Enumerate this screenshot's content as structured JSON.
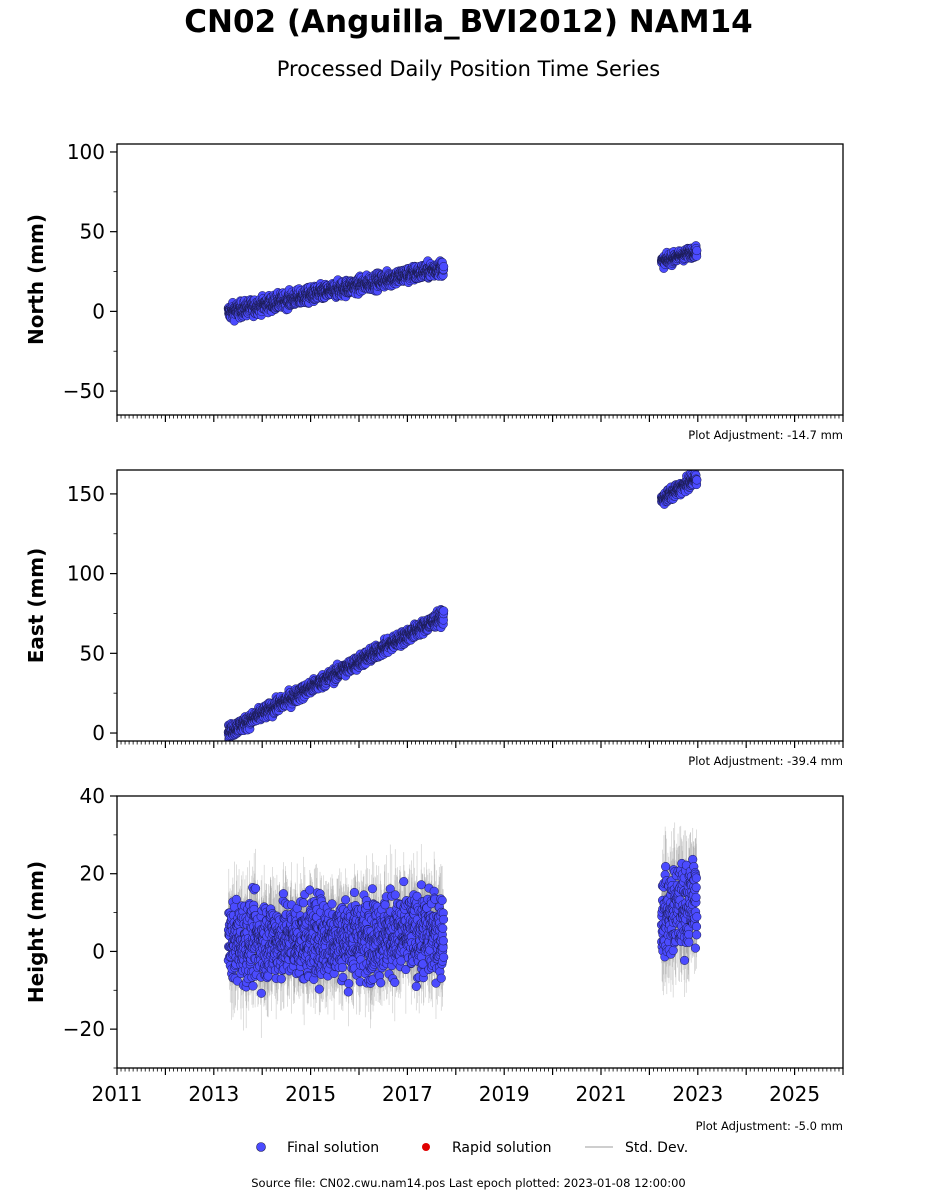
{
  "title": "CN02 (Anguilla_BVI2012) NAM14",
  "subtitle": "Processed Daily Position Time Series",
  "source_text": "Source file: CN02.cwu.nam14.pos  Last epoch plotted: 2023-01-08 12:00:00",
  "colors": {
    "final": "#4b4bff",
    "final_edge": "#1a1a4d",
    "rapid": "#e00000",
    "stddev": "#bdbdbd"
  },
  "chart_data": [
    {
      "type": "scatter",
      "ylabel": "North (mm)",
      "adjustment": "Plot Adjustment: -14.7 mm",
      "xlim": [
        2011,
        2026
      ],
      "ylim": [
        -65,
        105
      ],
      "yticks": [
        -50,
        0,
        50,
        100
      ],
      "ytick_labels": [
        "−50",
        "0",
        "50",
        "100"
      ],
      "show_xtick_labels": false,
      "series": [
        {
          "name": "Final solution",
          "segments": [
            {
              "x_start": 2013.3,
              "x_end": 2017.75,
              "y_start": -0.5,
              "y_end": 27.5,
              "scatter": 3.4
            },
            {
              "x_start": 2022.25,
              "x_end": 2022.98,
              "y_start": 31,
              "y_end": 38,
              "scatter": 2.4
            }
          ]
        }
      ]
    },
    {
      "type": "scatter",
      "ylabel": "East (mm)",
      "adjustment": "Plot Adjustment: -39.4 mm",
      "xlim": [
        2011,
        2026
      ],
      "ylim": [
        -5,
        165
      ],
      "yticks": [
        0,
        50,
        100,
        150
      ],
      "ytick_labels": [
        "0",
        "50",
        "100",
        "150"
      ],
      "show_xtick_labels": false,
      "series": [
        {
          "name": "Final solution",
          "segments": [
            {
              "x_start": 2013.3,
              "x_end": 2017.75,
              "y_start": 0.5,
              "y_end": 73.5,
              "scatter": 3.0
            },
            {
              "x_start": 2022.25,
              "x_end": 2022.98,
              "y_start": 146,
              "y_end": 160,
              "scatter": 2.6
            }
          ]
        }
      ]
    },
    {
      "type": "scatter",
      "ylabel": "Height (mm)",
      "adjustment": "Plot Adjustment: -5.0 mm",
      "xlim": [
        2011,
        2026
      ],
      "ylim": [
        -30,
        40
      ],
      "yticks": [
        -20,
        0,
        20,
        40
      ],
      "ytick_labels": [
        "−20",
        "0",
        "20",
        "40"
      ],
      "show_xtick_labels": true,
      "xticks": [
        2011,
        2013,
        2015,
        2017,
        2019,
        2021,
        2023,
        2025
      ],
      "xtick_labels": [
        "2011",
        "2013",
        "2015",
        "2017",
        "2019",
        "2021",
        "2023",
        "2025"
      ],
      "series": [
        {
          "name": "Final solution",
          "segments": [
            {
              "x_start": 2013.3,
              "x_end": 2017.75,
              "y_start": 2.5,
              "y_end": 4.5,
              "scatter": 7.2,
              "errbar": 8
            },
            {
              "x_start": 2022.25,
              "x_end": 2022.98,
              "y_start": 9,
              "y_end": 13,
              "scatter": 7.5,
              "errbar": 9
            }
          ]
        }
      ]
    }
  ],
  "legend": {
    "final": "Final solution",
    "rapid": "Rapid solution",
    "stddev": "Std. Dev."
  }
}
